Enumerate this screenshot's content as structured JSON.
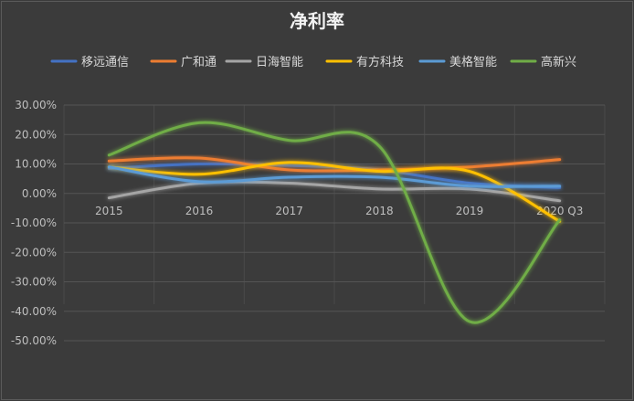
{
  "chart_data": {
    "type": "line",
    "title": "净利率",
    "categories": [
      "2015",
      "2016",
      "2017",
      "2018",
      "2019",
      "2020 Q3"
    ],
    "ylim": [
      -50,
      30
    ],
    "ytick_labels": [
      "30.00%",
      "20.00%",
      "10.00%",
      "0.00%",
      "-10.00%",
      "-20.00%",
      "-30.00%",
      "-40.00%",
      "-50.00%"
    ],
    "ytick_values": [
      30,
      20,
      10,
      0,
      -10,
      -20,
      -30,
      -40,
      -50
    ],
    "grid": true,
    "legend_position": "top",
    "series": [
      {
        "name": "移远通信",
        "color": "#4472c4",
        "values": [
          8.5,
          10,
          9.5,
          8,
          3.5,
          2
        ]
      },
      {
        "name": "广和通",
        "color": "#ed7d31",
        "values": [
          11,
          12,
          8,
          8,
          9,
          11.5
        ]
      },
      {
        "name": "日海智能",
        "color": "#a5a5a5",
        "values": [
          -1.5,
          3.5,
          3.5,
          1.5,
          1.5,
          -2.5
        ]
      },
      {
        "name": "有方科技",
        "color": "#ffc000",
        "values": [
          9,
          6.5,
          10.5,
          7.5,
          7.5,
          -9.5
        ]
      },
      {
        "name": "美格智能",
        "color": "#5b9bd5",
        "values": [
          9,
          4,
          5.5,
          5.5,
          2.5,
          2.5
        ]
      },
      {
        "name": "高新兴",
        "color": "#70ad47",
        "values": [
          13,
          24,
          18,
          16,
          -43.5,
          -9
        ]
      }
    ]
  }
}
